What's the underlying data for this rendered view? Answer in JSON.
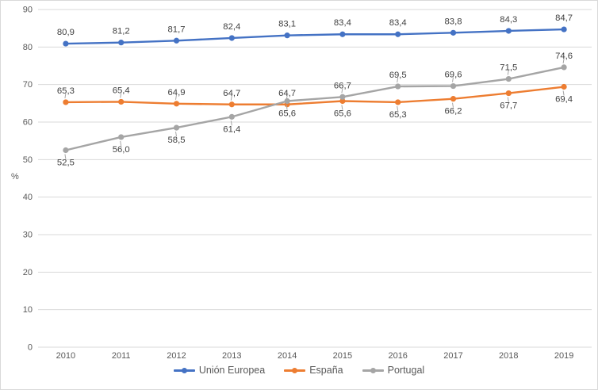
{
  "chart_data": {
    "type": "line",
    "title": "",
    "xlabel": "",
    "ylabel": "%",
    "ylim": [
      0,
      90
    ],
    "ytick_step": 10,
    "y_tick_labels": [
      "0",
      "10",
      "20",
      "30",
      "40",
      "50",
      "60",
      "70",
      "80",
      "90"
    ],
    "grid": true,
    "legend_position": "bottom",
    "decimal_separator": ",",
    "categories": [
      "2010",
      "2011",
      "2012",
      "2013",
      "2014",
      "2015",
      "2016",
      "2017",
      "2018",
      "2019"
    ],
    "series": [
      {
        "name": "Unión Europea",
        "color": "#4472C4",
        "values": [
          80.9,
          81.2,
          81.7,
          82.4,
          83.1,
          83.4,
          83.4,
          83.8,
          84.3,
          84.7
        ],
        "labels": [
          "80,9",
          "81,2",
          "81,7",
          "82,4",
          "83,1",
          "83,4",
          "83,4",
          "83,8",
          "84,3",
          "84,7"
        ],
        "label_positions": [
          "above",
          "above",
          "above",
          "above",
          "above",
          "above",
          "above",
          "above",
          "above",
          "above"
        ],
        "leader_lines": false
      },
      {
        "name": "España",
        "color": "#ED7D31",
        "values": [
          65.3,
          65.4,
          64.9,
          64.7,
          64.7,
          65.6,
          65.3,
          66.2,
          67.7,
          69.4
        ],
        "labels": [
          "65,3",
          "65,4",
          "64,9",
          "64,7",
          "64,7",
          "65,6",
          "65,3",
          "66,2",
          "67,7",
          "69,4"
        ],
        "label_positions": [
          "above",
          "above",
          "above",
          "above",
          "above",
          "below",
          "below",
          "below",
          "below",
          "below"
        ],
        "leader_lines": true
      },
      {
        "name": "Portugal",
        "color": "#A5A5A5",
        "values": [
          52.5,
          56.0,
          58.5,
          61.4,
          65.6,
          66.7,
          69.5,
          69.6,
          71.5,
          74.6
        ],
        "labels": [
          "52,5",
          "56,0",
          "58,5",
          "61,4",
          "65,6",
          "66,7",
          "69,5",
          "69,6",
          "71,5",
          "74,6"
        ],
        "label_positions": [
          "below",
          "below",
          "below",
          "below",
          "below",
          "above",
          "above",
          "above",
          "above",
          "above"
        ],
        "leader_lines": true
      }
    ]
  },
  "legend": {
    "items": [
      {
        "label": "Unión Europea",
        "color": "#4472C4"
      },
      {
        "label": "España",
        "color": "#ED7D31"
      },
      {
        "label": "Portugal",
        "color": "#A5A5A5"
      }
    ]
  },
  "styles": {
    "gridline_color": "#D9D9D9",
    "tick_label_color": "#595959",
    "data_label_color": "#404040",
    "leader_color": "#A6A6A6",
    "background": "#FFFFFF"
  }
}
